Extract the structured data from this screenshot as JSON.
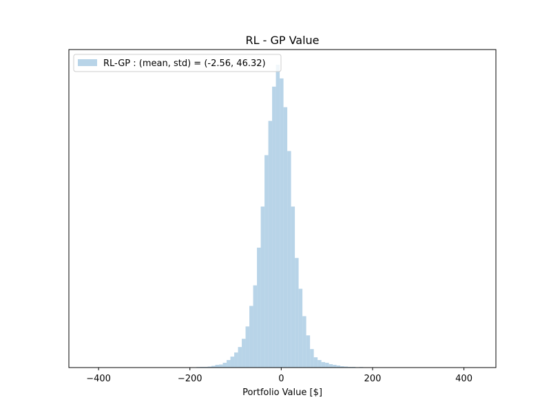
{
  "chart_data": {
    "type": "bar",
    "title": "RL - GP Value",
    "xlabel": "Portfolio Value [$]",
    "ylabel": "",
    "xlim": [
      -465,
      470
    ],
    "x_ticks": [
      -400,
      -200,
      0,
      200,
      400
    ],
    "y_axis_ticks_visible": false,
    "grid": false,
    "legend": {
      "position": "top-left",
      "entries": [
        "RL-GP : (mean, std) = (-2.56, 46.32)"
      ]
    },
    "series": [
      {
        "name": "RL-GP : (mean, std) = (-2.56, 46.32)",
        "color": "#b8d4e8",
        "bin_width": 8.3,
        "bin_lefts": [
          -435,
          -426.7,
          -418.4,
          -410.1,
          -401.8,
          -393.5,
          -385.2,
          -376.9,
          -368.6,
          -360.3,
          -352,
          -343.7,
          -335.4,
          -327.1,
          -318.8,
          -310.5,
          -302.2,
          -293.9,
          -285.6,
          -277.3,
          -269,
          -260.7,
          -252.4,
          -244.1,
          -235.8,
          -227.5,
          -219.2,
          -210.9,
          -202.6,
          -194.3,
          -186,
          -177.7,
          -169.4,
          -161.1,
          -152.8,
          -144.5,
          -136.2,
          -127.9,
          -119.6,
          -111.3,
          -103,
          -94.7,
          -86.4,
          -78.1,
          -69.8,
          -61.5,
          -53.2,
          -44.9,
          -36.6,
          -28.3,
          -20,
          -11.7,
          -3.4,
          4.9,
          13.2,
          21.5,
          29.8,
          38.1,
          46.4,
          54.7,
          63,
          71.3,
          79.6,
          87.9,
          96.2,
          104.5,
          112.8,
          121.1,
          129.4,
          137.7,
          146,
          154.3,
          162.6,
          170.9,
          179.2,
          187.5,
          195.8,
          204.1,
          212.4,
          220.7,
          229,
          237.3,
          245.6,
          253.9,
          262.2,
          270.5,
          278.8,
          287.1,
          295.4,
          303.7,
          312,
          320.3,
          328.6,
          336.9,
          345.2,
          353.5,
          361.8,
          370.1,
          378.4,
          386.7
        ],
        "counts": [
          0.5,
          0,
          0,
          0,
          0,
          0,
          0,
          0.3,
          0,
          0.5,
          0,
          0,
          0,
          0,
          0.3,
          0,
          0,
          0,
          0,
          0,
          0,
          0,
          0.3,
          0.3,
          0,
          0.5,
          0.3,
          0,
          0,
          0.5,
          0.8,
          1,
          1,
          1.5,
          2.5,
          4,
          4.5,
          7,
          11,
          16,
          22,
          30,
          42,
          60,
          90,
          120,
          175,
          235,
          310,
          360,
          410,
          442,
          422,
          380,
          316,
          235,
          160,
          115,
          75,
          47,
          27,
          15,
          11,
          8,
          7,
          5,
          4,
          3,
          2,
          1.5,
          1,
          1,
          0.5,
          0.8,
          0.5,
          0.5,
          0.3,
          0.5,
          0.3,
          0.3,
          0.3,
          0,
          0,
          0.5,
          0,
          0,
          0,
          0,
          0.3,
          0,
          0.3,
          0,
          0,
          0,
          0,
          0.3,
          0,
          0,
          0,
          0
        ]
      }
    ]
  }
}
